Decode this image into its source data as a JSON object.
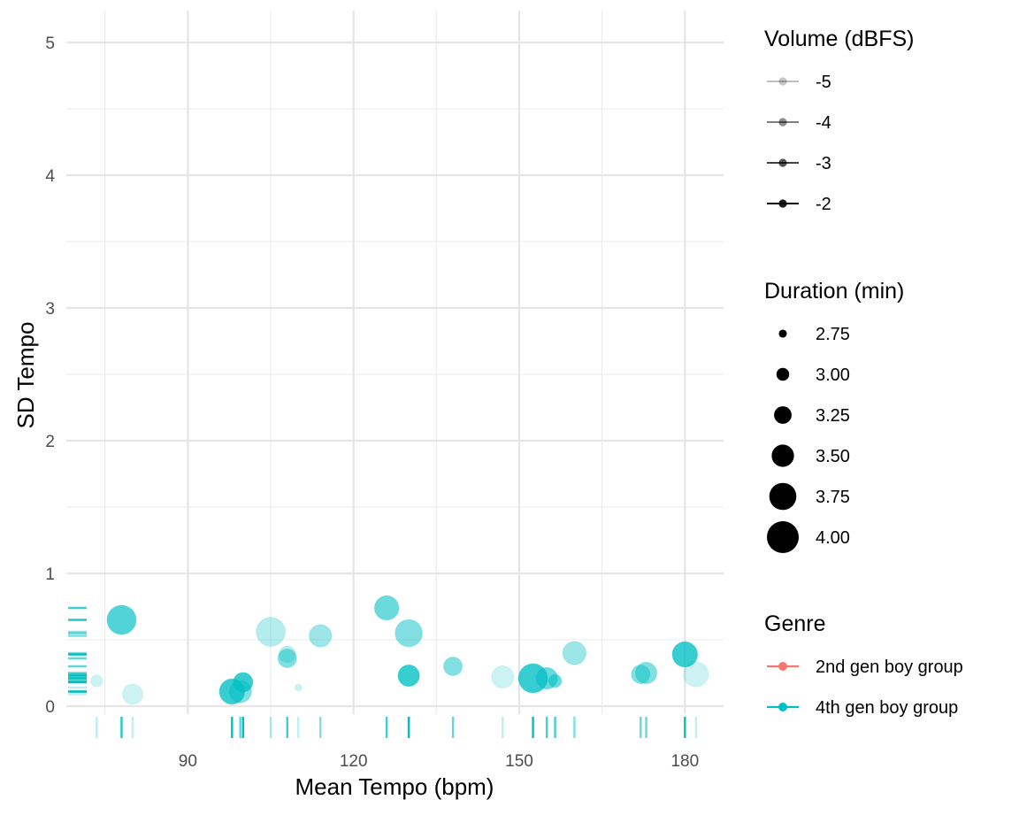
{
  "chart_data": {
    "type": "scatter",
    "xlabel": "Mean Tempo (bpm)",
    "ylabel": "SD Tempo",
    "xlim": [
      68,
      187
    ],
    "ylim": [
      -0.06,
      5.24
    ],
    "x_ticks": [
      90,
      120,
      150,
      180
    ],
    "y_ticks": [
      0,
      1,
      2,
      3,
      4,
      5
    ],
    "grid": true,
    "rug": true,
    "legend_position": "right",
    "colors": {
      "2nd gen boy group": "#F8766D",
      "4th gen boy group": "#00BFC4"
    },
    "legends": [
      {
        "title": "Volume (dBFS)",
        "kind": "alpha",
        "entries": [
          {
            "label": "-5",
            "alpha": 0.25
          },
          {
            "label": "-4",
            "alpha": 0.5
          },
          {
            "label": "-3",
            "alpha": 0.75
          },
          {
            "label": "-2",
            "alpha": 1.0
          }
        ]
      },
      {
        "title": "Duration (min)",
        "kind": "size",
        "entries": [
          {
            "label": "2.75",
            "value": 2.75
          },
          {
            "label": "3.00",
            "value": 3.0
          },
          {
            "label": "3.25",
            "value": 3.25
          },
          {
            "label": "3.50",
            "value": 3.5
          },
          {
            "label": "3.75",
            "value": 3.75
          },
          {
            "label": "4.00",
            "value": 4.0
          }
        ]
      },
      {
        "title": "Genre",
        "kind": "color",
        "entries": [
          {
            "label": "2nd gen boy group",
            "color": "#F8766D"
          },
          {
            "label": "4th gen boy group",
            "color": "#00BFC4"
          }
        ]
      }
    ],
    "series": [
      {
        "name": "4th gen boy group",
        "points": [
          {
            "x": 73.5,
            "y": 0.19,
            "duration": 2.95,
            "volume": -5.0
          },
          {
            "x": 78.0,
            "y": 0.65,
            "duration": 3.85,
            "volume": -2.5
          },
          {
            "x": 80.0,
            "y": 0.09,
            "duration": 3.4,
            "volume": -5.0
          },
          {
            "x": 98.0,
            "y": 0.11,
            "duration": 3.65,
            "volume": -2.0
          },
          {
            "x": 99.5,
            "y": 0.11,
            "duration": 3.5,
            "volume": -3.5
          },
          {
            "x": 100.0,
            "y": 0.18,
            "duration": 3.35,
            "volume": -2.0
          },
          {
            "x": 105.0,
            "y": 0.56,
            "duration": 3.85,
            "volume": -4.5
          },
          {
            "x": 108.0,
            "y": 0.39,
            "duration": 3.2,
            "volume": -4.5
          },
          {
            "x": 108.0,
            "y": 0.36,
            "duration": 3.3,
            "volume": -3.5
          },
          {
            "x": 110.0,
            "y": 0.14,
            "duration": 2.7,
            "volume": -5.0
          },
          {
            "x": 114.0,
            "y": 0.53,
            "duration": 3.5,
            "volume": -4.0
          },
          {
            "x": 126.0,
            "y": 0.74,
            "duration": 3.6,
            "volume": -3.0
          },
          {
            "x": 130.0,
            "y": 0.55,
            "duration": 3.75,
            "volume": -3.5
          },
          {
            "x": 130.0,
            "y": 0.23,
            "duration": 3.45,
            "volume": -2.0
          },
          {
            "x": 138.0,
            "y": 0.3,
            "duration": 3.3,
            "volume": -3.5
          },
          {
            "x": 147.0,
            "y": 0.22,
            "duration": 3.5,
            "volume": -5.0
          },
          {
            "x": 152.5,
            "y": 0.21,
            "duration": 3.85,
            "volume": -2.0
          },
          {
            "x": 155.0,
            "y": 0.21,
            "duration": 3.45,
            "volume": -3.0
          },
          {
            "x": 156.5,
            "y": 0.19,
            "duration": 3.0,
            "volume": -3.0
          },
          {
            "x": 160.0,
            "y": 0.4,
            "duration": 3.55,
            "volume": -4.0
          },
          {
            "x": 172.0,
            "y": 0.24,
            "duration": 3.3,
            "volume": -3.5
          },
          {
            "x": 173.0,
            "y": 0.25,
            "duration": 3.45,
            "volume": -3.5
          },
          {
            "x": 180.0,
            "y": 0.39,
            "duration": 3.65,
            "volume": -2.0
          },
          {
            "x": 182.0,
            "y": 0.24,
            "duration": 3.65,
            "volume": -5.0
          }
        ]
      }
    ]
  }
}
